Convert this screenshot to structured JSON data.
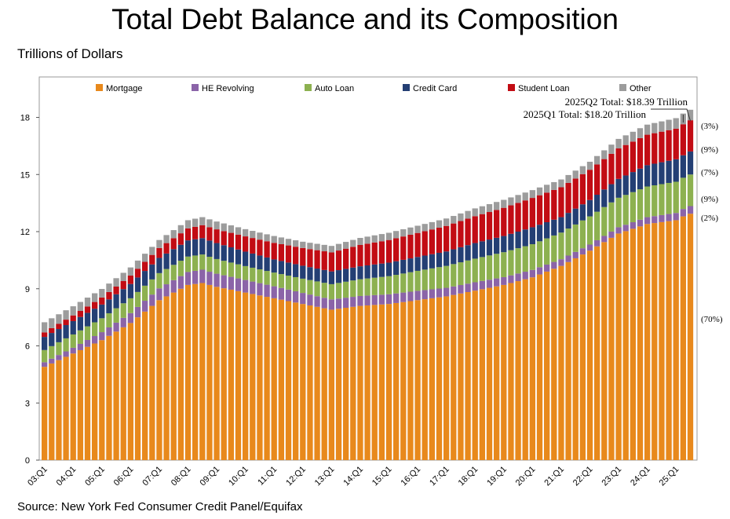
{
  "title": "Total Debt Balance and its Composition",
  "units_label": "Trillions of Dollars",
  "source": "Source: New York Fed Consumer Credit Panel/Equifax",
  "colors": {
    "Mortgage": "#e8891c",
    "HE Revolving": "#8b64a8",
    "Auto Loan": "#8db150",
    "Credit Card": "#243f74",
    "Student Loan": "#c20c14",
    "Other": "#9c9c9c"
  },
  "chart_data": {
    "type": "bar",
    "stacked": true,
    "ylim": [
      0,
      19
    ],
    "yticks": [
      0,
      3,
      6,
      9,
      12,
      15,
      18
    ],
    "grid": false,
    "legend_position": "top",
    "legend": [
      "Mortgage",
      "HE Revolving",
      "Auto Loan",
      "Credit Card",
      "Student Loan",
      "Other"
    ],
    "xtick_labels": [
      "03:Q1",
      "04:Q1",
      "05:Q1",
      "06:Q1",
      "07:Q1",
      "08:Q1",
      "09:Q1",
      "10:Q1",
      "11:Q1",
      "12:Q1",
      "13:Q1",
      "14:Q1",
      "15:Q1",
      "16:Q1",
      "17:Q1",
      "18:Q1",
      "19:Q1",
      "20:Q1",
      "21:Q1",
      "22:Q1",
      "23:Q1",
      "24:Q1",
      "25:Q1"
    ],
    "annotations": [
      "2025Q2 Total: $18.39 Trillion",
      "2025Q1 Total: $18.20 Trillion"
    ],
    "composition_labels": [
      "(3%)",
      "(9%)",
      "(7%)",
      "(9%)",
      "(2%)",
      "(70%)"
    ],
    "anchors": [
      {
        "q": 0,
        "values": [
          4.9,
          0.24,
          0.64,
          0.69,
          0.24,
          0.53
        ]
      },
      {
        "q": 4,
        "values": [
          5.6,
          0.3,
          0.7,
          0.7,
          0.3,
          0.48
        ]
      },
      {
        "q": 8,
        "values": [
          6.3,
          0.42,
          0.73,
          0.72,
          0.37,
          0.45
        ]
      },
      {
        "q": 12,
        "values": [
          7.2,
          0.52,
          0.78,
          0.75,
          0.44,
          0.43
        ]
      },
      {
        "q": 16,
        "values": [
          8.4,
          0.62,
          0.8,
          0.8,
          0.52,
          0.42
        ]
      },
      {
        "q": 20,
        "values": [
          9.2,
          0.68,
          0.81,
          0.85,
          0.63,
          0.43
        ]
      },
      {
        "q": 22,
        "values": [
          9.3,
          0.7,
          0.8,
          0.86,
          0.68,
          0.42
        ]
      },
      {
        "q": 24,
        "values": [
          9.1,
          0.69,
          0.77,
          0.84,
          0.72,
          0.41
        ]
      },
      {
        "q": 28,
        "values": [
          8.8,
          0.66,
          0.73,
          0.76,
          0.8,
          0.38
        ]
      },
      {
        "q": 32,
        "values": [
          8.5,
          0.63,
          0.72,
          0.69,
          0.87,
          0.36
        ]
      },
      {
        "q": 36,
        "values": [
          8.2,
          0.58,
          0.75,
          0.68,
          0.93,
          0.33
        ]
      },
      {
        "q": 40,
        "values": [
          7.9,
          0.54,
          0.8,
          0.67,
          1.0,
          0.34
        ]
      },
      {
        "q": 44,
        "values": [
          8.1,
          0.52,
          0.88,
          0.68,
          1.12,
          0.37
        ]
      },
      {
        "q": 48,
        "values": [
          8.2,
          0.51,
          0.95,
          0.71,
          1.19,
          0.38
        ]
      },
      {
        "q": 52,
        "values": [
          8.4,
          0.49,
          1.05,
          0.73,
          1.26,
          0.38
        ]
      },
      {
        "q": 56,
        "values": [
          8.6,
          0.45,
          1.15,
          0.76,
          1.34,
          0.39
        ]
      },
      {
        "q": 60,
        "values": [
          8.9,
          0.44,
          1.24,
          0.82,
          1.41,
          0.41
        ]
      },
      {
        "q": 64,
        "values": [
          9.2,
          0.41,
          1.31,
          0.85,
          1.48,
          0.42
        ]
      },
      {
        "q": 68,
        "values": [
          9.6,
          0.39,
          1.35,
          0.89,
          1.54,
          0.41
        ]
      },
      {
        "q": 72,
        "values": [
          10.2,
          0.35,
          1.4,
          0.81,
          1.57,
          0.41
        ]
      },
      {
        "q": 76,
        "values": [
          11.0,
          0.32,
          1.48,
          0.86,
          1.59,
          0.42
        ]
      },
      {
        "q": 80,
        "values": [
          11.9,
          0.33,
          1.55,
          0.99,
          1.6,
          0.5
        ]
      },
      {
        "q": 84,
        "values": [
          12.4,
          0.36,
          1.61,
          1.12,
          1.6,
          0.53
        ]
      },
      {
        "q": 88,
        "values": [
          12.6,
          0.38,
          1.64,
          1.18,
          1.61,
          0.55
        ]
      },
      {
        "q": 89,
        "values": [
          12.8,
          0.39,
          1.64,
          1.18,
          1.63,
          0.56
        ]
      },
      {
        "q": 90,
        "values": [
          12.94,
          0.4,
          1.66,
          1.21,
          1.64,
          0.55
        ]
      }
    ]
  }
}
